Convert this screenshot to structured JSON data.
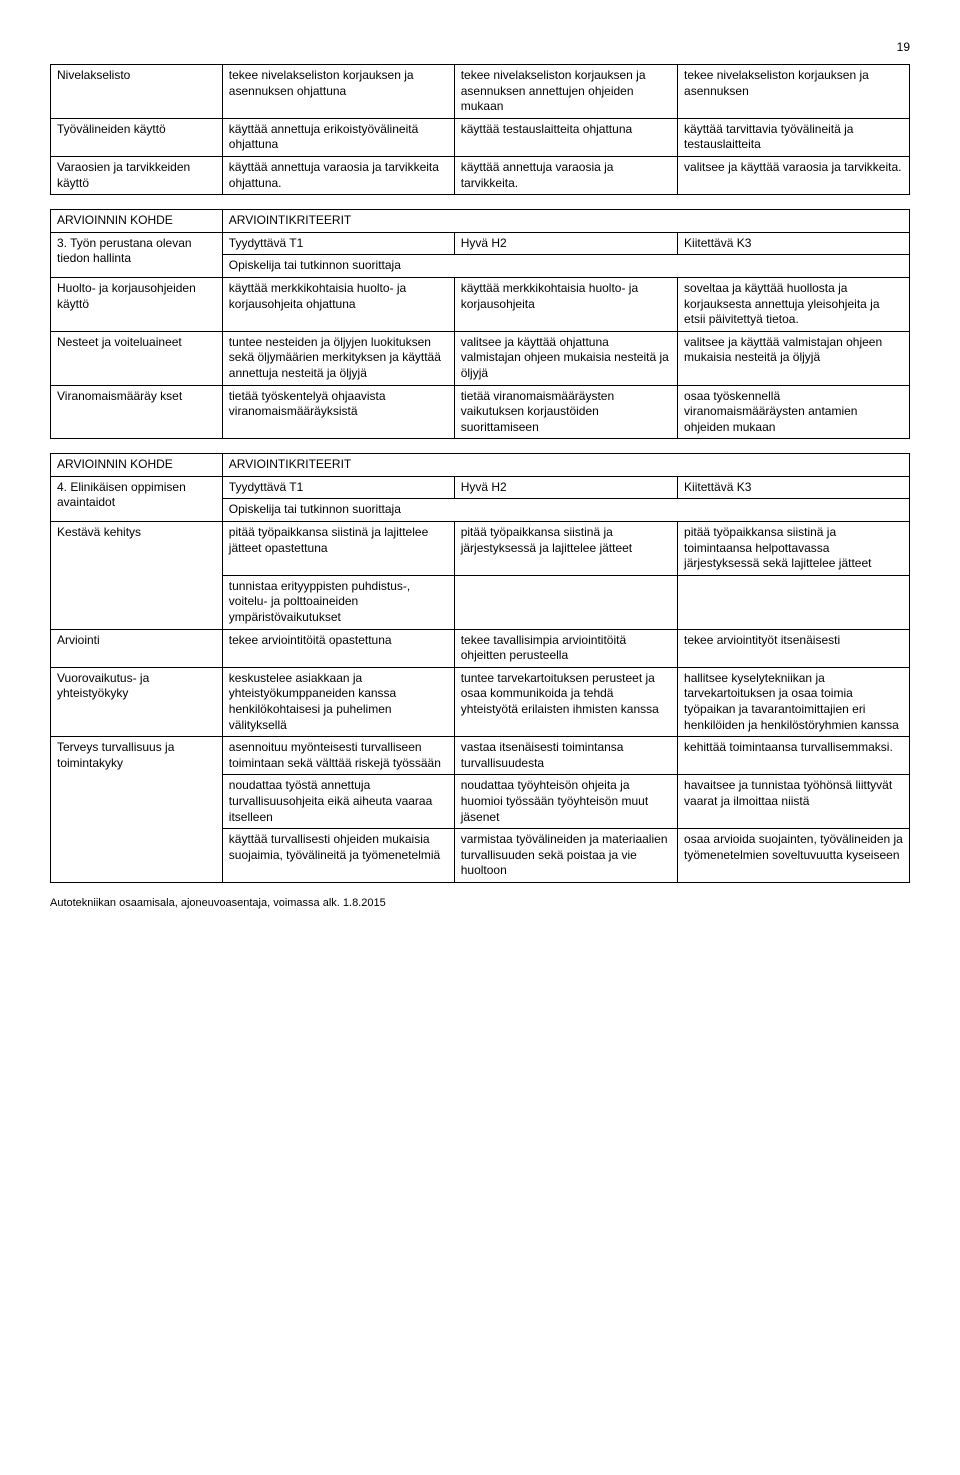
{
  "page_number": "19",
  "footer": "Autotekniikan osaamisala, ajoneuvoasentaja, voimassa alk. 1.8.2015",
  "table1": {
    "rows": [
      {
        "label": "Nivelakselisto",
        "c1": "tekee nivelakseliston korjauksen ja asennuksen ohjattuna",
        "c2": "tekee nivelakseliston korjauksen ja asennuksen annettujen ohjeiden mukaan",
        "c3": "tekee nivelakseliston korjauksen ja asennuksen"
      },
      {
        "label": "Työvälineiden käyttö",
        "c1": "käyttää annettuja erikoistyövälineitä ohjattuna",
        "c2": "käyttää testauslaitteita ohjattuna",
        "c3": "käyttää tarvittavia työvälineitä ja testauslaitteita"
      },
      {
        "label": "Varaosien ja tarvikkeiden käyttö",
        "c1": "käyttää annettuja varaosia ja tarvikkeita ohjattuna.",
        "c2": "käyttää annettuja varaosia ja tarvikkeita.",
        "c3": "valitsee ja käyttää varaosia ja tarvikkeita."
      }
    ]
  },
  "table2": {
    "header": {
      "label": "ARVIOINNIN KOHDE",
      "criteria": "ARVIOINTIKRITEERIT"
    },
    "grades": {
      "label": "3. Työn perustana olevan tiedon hallinta",
      "t1": "Tyydyttävä T1",
      "h2": "Hyvä H2",
      "k3": "Kiitettävä K3",
      "sub": "Opiskelija tai tutkinnon suorittaja"
    },
    "rows": [
      {
        "label": "Huolto- ja korjausohjeiden käyttö",
        "c1": "käyttää merkkikohtaisia huolto- ja korjausohjeita ohjattuna",
        "c2": "käyttää merkkikohtaisia huolto- ja korjausohjeita",
        "c3": "soveltaa ja käyttää huollosta ja korjauksesta annettuja yleisohjeita ja etsii päivitettyä tietoa."
      },
      {
        "label": "Nesteet ja voiteluaineet",
        "c1": "tuntee nesteiden ja öljyjen luokituksen sekä öljymäärien merkityksen ja käyttää annettuja nesteitä ja öljyjä",
        "c2": "valitsee ja käyttää ohjattuna valmistajan ohjeen mukaisia nesteitä ja öljyjä",
        "c3": "valitsee ja käyttää valmistajan ohjeen mukaisia nesteitä ja öljyjä"
      },
      {
        "label": "Viranomaismääräy kset",
        "c1": "tietää työskentelyä ohjaavista viranomaismääräyksistä",
        "c2": "tietää viranomaismääräysten vaikutuksen korjaustöiden suorittamiseen",
        "c3": "osaa työskennellä viranomaismääräysten antamien ohjeiden mukaan"
      }
    ]
  },
  "table3": {
    "header": {
      "label": "ARVIOINNIN KOHDE",
      "criteria": "ARVIOINTIKRITEERIT"
    },
    "grades": {
      "label": "4. Elinikäisen oppimisen avaintaidot",
      "t1": "Tyydyttävä T1",
      "h2": "Hyvä H2",
      "k3": "Kiitettävä K3",
      "sub": "Opiskelija tai tutkinnon suorittaja"
    },
    "rows": [
      {
        "label": "Kestävä kehitys",
        "span_label": 2,
        "c1": "pitää työpaikkansa siistinä ja lajittelee jätteet opastettuna",
        "c2": "pitää työpaikkansa siistinä ja järjestyksessä ja lajittelee jätteet",
        "c3": "pitää työpaikkansa siistinä ja toimintaansa helpottavassa järjestyksessä sekä lajittelee jätteet"
      },
      {
        "c1": "tunnistaa erityyppisten puhdistus-, voitelu- ja polttoaineiden ympäristövaikutukset",
        "c2": "",
        "c3": ""
      },
      {
        "label": "Arviointi",
        "c1": "tekee arviointitöitä opastettuna",
        "c2": "tekee tavallisimpia arviointitöitä ohjeitten perusteella",
        "c3": "tekee arviointityöt itsenäisesti"
      },
      {
        "label": "Vuorovaikutus- ja yhteistyökyky",
        "c1": "keskustelee asiakkaan ja yhteistyökumppaneiden kanssa henkilökohtaisesi ja puhelimen välityksellä",
        "c2": "tuntee tarvekartoituksen perusteet ja osaa kommunikoida ja tehdä yhteistyötä erilaisten ihmisten kanssa",
        "c3": "hallitsee kyselytekniikan ja tarvekartoituksen ja osaa toimia työpaikan ja tavarantoimittajien eri henkilöiden ja henkilöstöryhmien kanssa"
      },
      {
        "label": "Terveys turvallisuus ja toimintakyky",
        "span_label": 3,
        "c1": "asennoituu myönteisesti turvalliseen toimintaan sekä välttää riskejä työssään",
        "c2": "vastaa itsenäisesti toimintansa turvallisuudesta",
        "c3": "kehittää toimintaansa turvallisemmaksi."
      },
      {
        "c1": "noudattaa työstä annettuja turvallisuusohjeita eikä aiheuta vaaraa itselleen",
        "c2": "noudattaa työyhteisön ohjeita ja huomioi työssään työyhteisön muut jäsenet",
        "c3": "havaitsee ja tunnistaa työhönsä liittyvät vaarat ja ilmoittaa niistä"
      },
      {
        "c1": "käyttää turvallisesti ohjeiden mukaisia suojaimia, työvälineitä ja työmenetelmiä",
        "c2": "varmistaa työvälineiden ja materiaalien turvallisuuden sekä poistaa ja vie huoltoon",
        "c3": "osaa arvioida suojainten, työvälineiden ja työmenetelmien soveltuvuutta kyseiseen"
      }
    ]
  }
}
